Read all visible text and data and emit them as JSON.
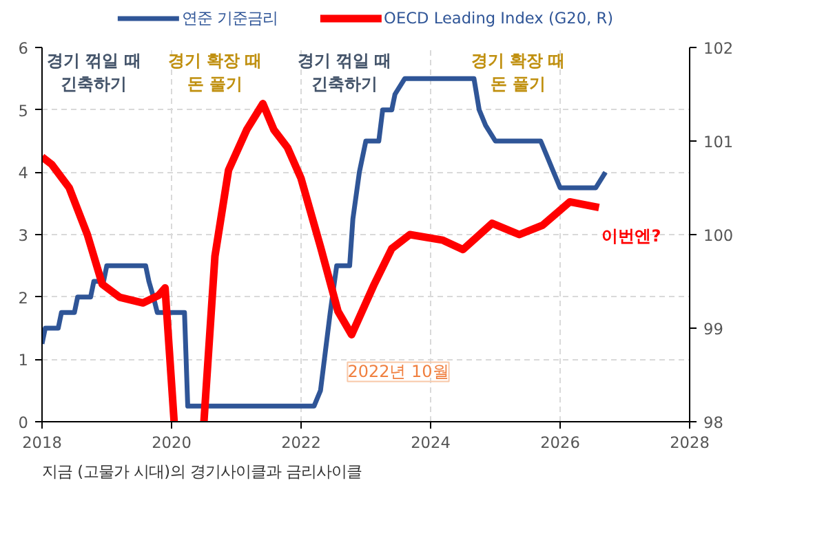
{
  "chart_data": {
    "type": "line",
    "x": [
      2018.0,
      2018.05,
      2018.25,
      2018.3,
      2018.5,
      2018.55,
      2018.75,
      2018.8,
      2018.95,
      2019.0,
      2019.6,
      2019.65,
      2019.72,
      2019.78,
      2019.85,
      2020.2,
      2020.25,
      2022.2,
      2022.3,
      2022.45,
      2022.55,
      2022.75,
      2022.8,
      2022.9,
      2023.0,
      2023.2,
      2023.26,
      2023.4,
      2023.45,
      2023.6,
      2024.67,
      2024.75,
      2024.85,
      2025.0,
      2025.7,
      2025.8,
      2025.9,
      2026.0,
      2026.55,
      2026.7
    ],
    "series": [
      {
        "name": "연준 기준금리",
        "color": "#2f5597",
        "values": [
          1.25,
          1.5,
          1.5,
          1.75,
          1.75,
          2.0,
          2.0,
          2.25,
          2.25,
          2.5,
          2.5,
          2.25,
          2.0,
          1.75,
          1.75,
          1.75,
          0.25,
          0.25,
          0.5,
          1.75,
          2.5,
          2.5,
          3.25,
          4.0,
          4.5,
          4.5,
          5.0,
          5.0,
          5.25,
          5.5,
          5.5,
          5.0,
          4.75,
          4.5,
          4.5,
          4.25,
          4.0,
          3.75,
          3.75,
          4.0
        ]
      },
      {
        "name": "OECD Leading Index (G20, R)",
        "color": "#ff0000",
        "axis": "y2",
        "x": [
          2018.0,
          2018.15,
          2018.42,
          2018.7,
          2018.93,
          2019.2,
          2019.56,
          2019.8,
          2019.9,
          2020.04,
          2020.2,
          2020.5,
          2020.67,
          2020.88,
          2021.16,
          2021.41,
          2021.58,
          2021.79,
          2022.0,
          2022.3,
          2022.57,
          2022.78,
          2023.13,
          2023.4,
          2023.68,
          2024.19,
          2024.5,
          2024.95,
          2025.37,
          2025.73,
          2026.15,
          2026.6
        ],
        "values": [
          100.83,
          100.75,
          100.5,
          100.0,
          99.47,
          99.33,
          99.27,
          99.35,
          99.43,
          98.0,
          null,
          98.0,
          99.77,
          100.69,
          101.12,
          101.4,
          101.12,
          100.93,
          100.6,
          99.87,
          99.18,
          98.93,
          99.47,
          99.85,
          100.0,
          99.94,
          99.84,
          100.12,
          100.0,
          100.1,
          100.35,
          100.29
        ]
      }
    ],
    "xlim": [
      2018,
      2028
    ],
    "xticks": [
      2018,
      2020,
      2022,
      2024,
      2026,
      2028
    ],
    "ylim": [
      0,
      6
    ],
    "yticks": [
      0,
      1,
      2,
      3,
      4,
      5,
      6
    ],
    "y2lim": [
      98,
      102
    ],
    "y2ticks": [
      98,
      99,
      100,
      101,
      102
    ],
    "grid": true,
    "legend": "top",
    "line_style": "solid",
    "marker": "none",
    "annotations": [
      "경기 꺾일 때\n긴축하기",
      "경기 확장 때\n돈 풀기",
      "경기 꺾일 때\n긴축하기",
      "경기 확장 때\n돈 풀기",
      "이번엔?",
      "2022년 10월",
      "지금 (고물가 시대)의 경기사이클과 금리사이클"
    ]
  }
}
